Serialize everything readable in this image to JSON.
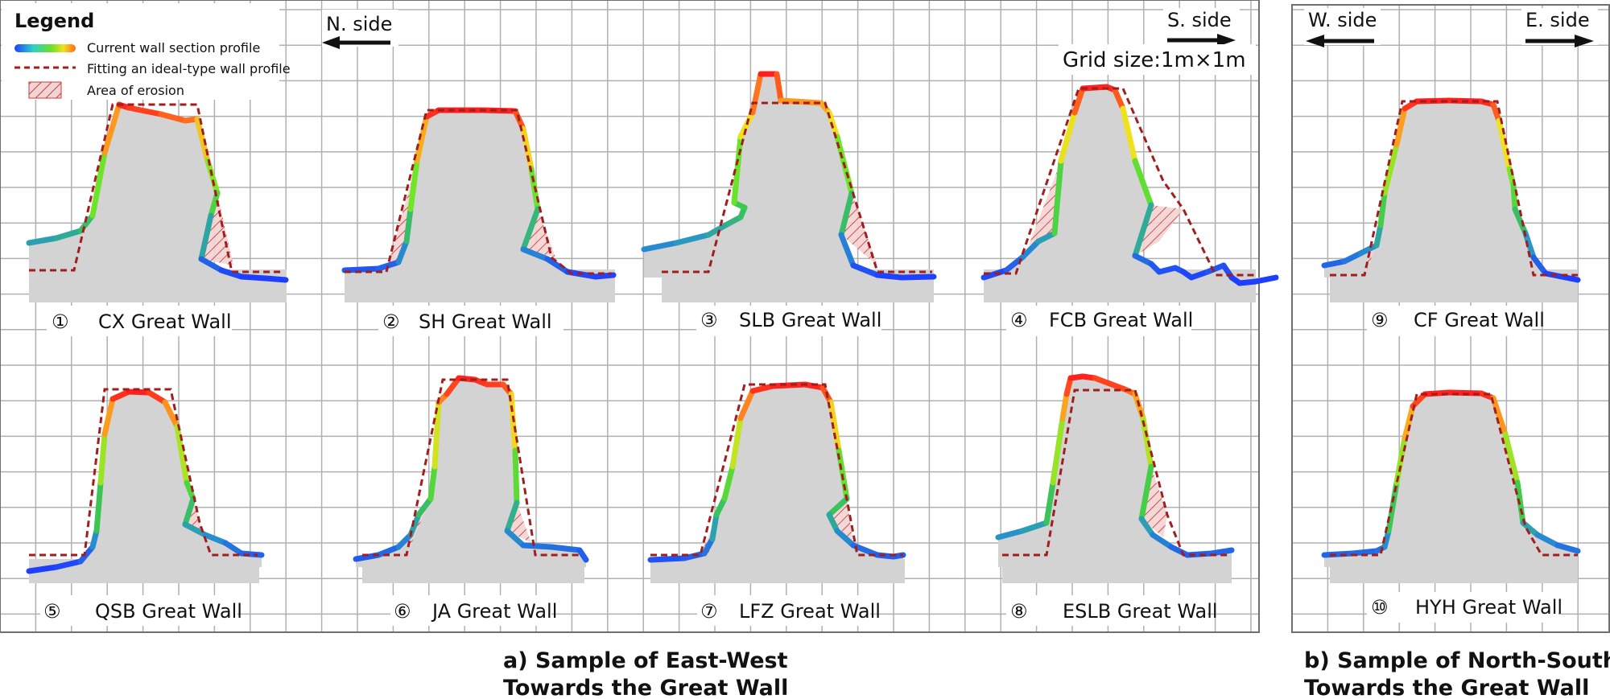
{
  "legend": {
    "title": "Legend",
    "current_profile": "Current wall section profile",
    "ideal_profile": "Fitting an ideal-type wall profile",
    "erosion": "Area of erosion"
  },
  "directions": {
    "n_side": "N. side",
    "s_side": "S. side",
    "w_side": "W. side",
    "e_side": "E. side"
  },
  "grid_size": "Grid size:1m×1m",
  "samples": [
    {
      "number": "①",
      "name": "CX Great Wall"
    },
    {
      "number": "②",
      "name": "SH Great Wall"
    },
    {
      "number": "③",
      "name": "SLB Great Wall"
    },
    {
      "number": "④",
      "name": "FCB Great Wall"
    },
    {
      "number": "⑤",
      "name": "QSB Great Wall"
    },
    {
      "number": "⑥",
      "name": "JA Great Wall"
    },
    {
      "number": "⑦",
      "name": "LFZ Great Wall"
    },
    {
      "number": "⑧",
      "name": "ESLB Great Wall"
    },
    {
      "number": "⑨",
      "name": "CF Great Wall"
    },
    {
      "number": "⑩",
      "name": "HYH Great Wall"
    }
  ],
  "captions": {
    "a_line1": "a)  Sample of East-West",
    "a_line2": "Towards the Great Wall",
    "b_line1": "b) Sample of North-South",
    "b_line2": "Towards the Great Wall"
  },
  "colors": {
    "grid": "#b0b0b0",
    "wall_fill": "#d3d3d3",
    "ideal_line": "#a01e1e",
    "erosion_hatch": "#c83c3c",
    "gradient_low": "#1f3fff",
    "gradient_mid": "#5ee02a",
    "gradient_high": "#ff1a1a"
  }
}
